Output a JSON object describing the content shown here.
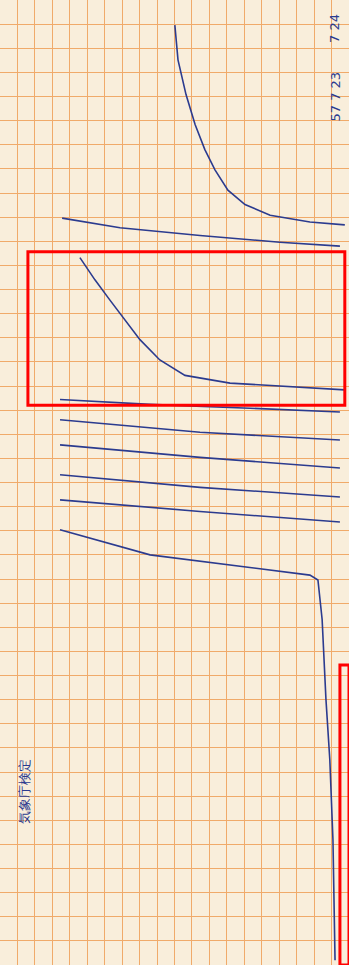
{
  "chart_data": {
    "type": "line",
    "grid": true,
    "tick_labels": false,
    "xlim": [
      0,
      100
    ],
    "ylim": [
      100,
      0
    ],
    "xticks": [
      0,
      5,
      10,
      15,
      20,
      25,
      30,
      35,
      40,
      45,
      50,
      55,
      60,
      65,
      70,
      75,
      80,
      85,
      90,
      95,
      100
    ],
    "yticks": [
      0,
      2.5,
      5,
      7.5,
      10,
      12.5,
      15,
      17.5,
      20,
      22.5,
      25,
      27.5,
      30,
      32.5,
      35,
      37.5,
      40,
      42.5,
      45,
      47.5,
      50,
      52.5,
      55,
      57.5,
      60,
      62.5,
      65,
      67.5,
      70,
      72.5,
      75,
      77.5,
      80,
      82.5,
      85,
      87.5,
      90,
      92.5,
      95,
      97.5,
      100
    ],
    "color": "#2b3b8f",
    "series": [
      {
        "x": [
          50.1,
          51.0,
          53.3,
          55.9,
          58.7,
          61.6,
          65.3,
          70.2,
          77.4,
          88.8,
          98.8
        ],
        "values": [
          2.6,
          6.2,
          9.8,
          12.9,
          15.5,
          17.6,
          19.7,
          21.2,
          22.3,
          23.0,
          23.3
        ]
      },
      {
        "x": [
          17.8,
          34.4,
          57.3,
          80.2,
          97.4
        ],
        "values": [
          22.6,
          23.6,
          24.4,
          25.1,
          25.5
        ]
      },
      {
        "x": [
          22.9,
          27.2,
          31.5,
          35.8,
          40.1,
          45.8,
          53.0,
          65.9,
          83.1,
          98.8
        ],
        "values": [
          26.7,
          29.0,
          31.1,
          33.2,
          35.2,
          37.3,
          38.9,
          39.7,
          40.1,
          40.4
        ]
      },
      {
        "x": [
          17.2,
          43.0,
          71.6,
          97.4
        ],
        "values": [
          41.4,
          41.9,
          42.3,
          42.7
        ]
      },
      {
        "x": [
          17.2,
          57.3,
          97.4
        ],
        "values": [
          43.5,
          44.8,
          45.6
        ]
      },
      {
        "x": [
          17.2,
          57.3,
          97.4
        ],
        "values": [
          46.1,
          47.4,
          48.5
        ]
      },
      {
        "x": [
          17.2,
          57.3,
          97.4
        ],
        "values": [
          49.2,
          50.5,
          51.5
        ]
      },
      {
        "x": [
          17.2,
          57.3,
          97.4
        ],
        "values": [
          51.8,
          53.0,
          54.1
        ]
      },
      {
        "x": [
          17.2,
          43.0,
          71.6,
          88.8,
          91.1,
          92.3,
          93.4,
          94.5,
          95.4,
          96.0
        ],
        "values": [
          54.9,
          57.5,
          58.8,
          59.6,
          60.1,
          64.2,
          72.5,
          78.7,
          87.0,
          99.5
        ]
      }
    ],
    "highlights": [
      {
        "x": [
          8.0,
          98.8
        ],
        "y": [
          26.1,
          42.0
        ],
        "color": "#ff0000"
      },
      {
        "x": [
          97.4,
          100
        ],
        "y": [
          68.9,
          100
        ],
        "color": "#ff0000"
      }
    ],
    "annotations": [
      {
        "text": "57 7 23",
        "x": 96,
        "y": 10
      },
      {
        "text": "7 24",
        "x": 96,
        "y": 3
      },
      {
        "text": "気象庁検定",
        "x": 7,
        "y": 82
      }
    ]
  }
}
